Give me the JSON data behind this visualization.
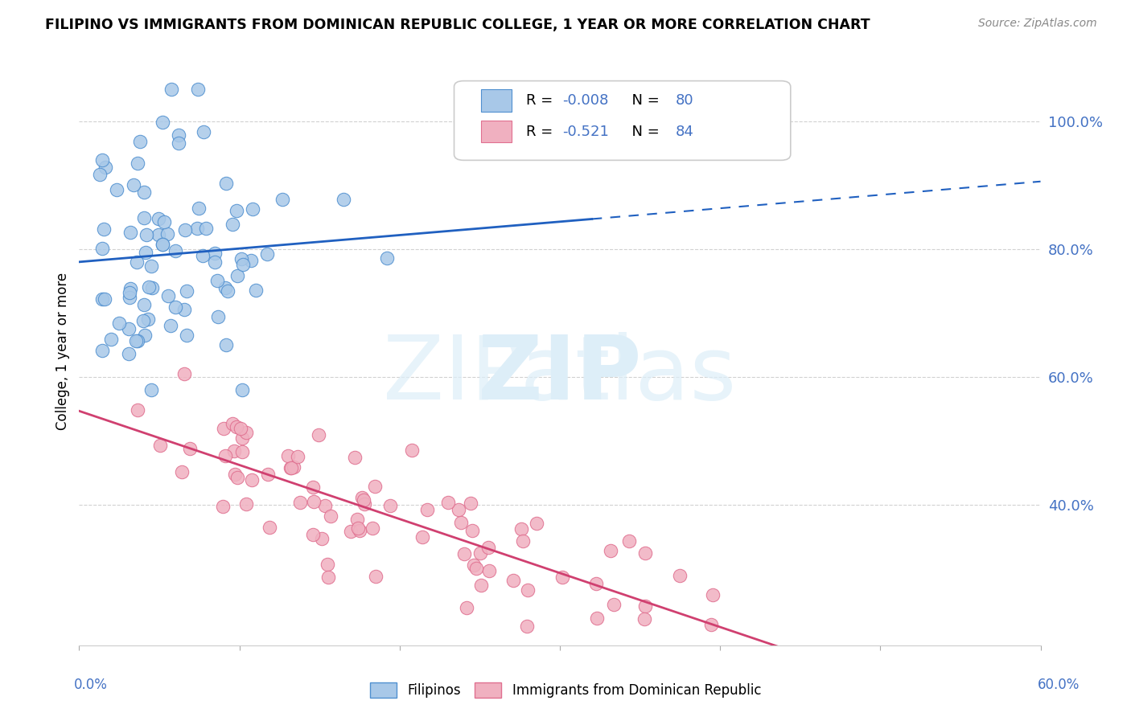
{
  "title": "FILIPINO VS IMMIGRANTS FROM DOMINICAN REPUBLIC COLLEGE, 1 YEAR OR MORE CORRELATION CHART",
  "source": "Source: ZipAtlas.com",
  "ylabel": "College, 1 year or more",
  "y_ticks": [
    0.4,
    0.6,
    0.8,
    1.0
  ],
  "y_tick_labels": [
    "40.0%",
    "60.0%",
    "80.0%",
    "100.0%"
  ],
  "x_lim": [
    0.0,
    0.6
  ],
  "y_lim": [
    0.18,
    1.1
  ],
  "blue_r": -0.008,
  "blue_n": 80,
  "pink_r": -0.521,
  "pink_n": 84,
  "blue_dot_color": "#a8c8e8",
  "blue_dot_edge": "#5090d0",
  "pink_dot_color": "#f0b0c0",
  "pink_dot_edge": "#e07090",
  "blue_line_color": "#2060c0",
  "pink_line_color": "#d04070",
  "legend_label_blue": "Filipinos",
  "legend_label_pink": "Immigrants from Dominican Republic",
  "watermark_color": "#ddeef8",
  "grid_color": "#cccccc",
  "tick_label_color": "#4472c4",
  "title_color": "#000000",
  "source_color": "#888888"
}
